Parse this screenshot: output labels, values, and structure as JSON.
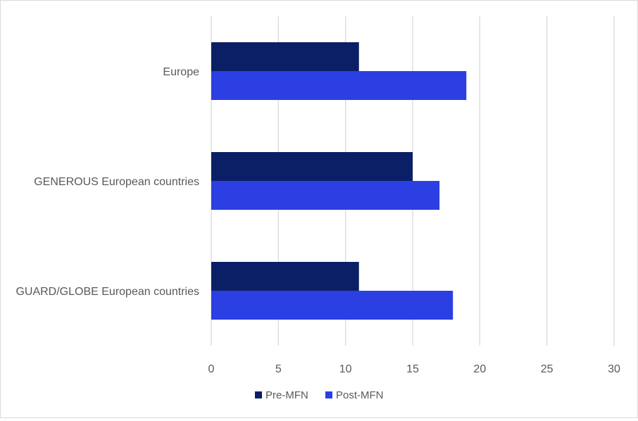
{
  "chart_data": {
    "type": "bar",
    "orientation": "horizontal",
    "title": "",
    "xlabel": "",
    "ylabel": "",
    "categories": [
      "Europe",
      "GENEROUS European countries",
      "GUARD/GLOBE European countries"
    ],
    "series": [
      {
        "name": "Pre-MFN",
        "color": "#0b1f66",
        "values": [
          11,
          15,
          11
        ]
      },
      {
        "name": "Post-MFN",
        "color": "#2b3fe3",
        "values": [
          19,
          17,
          18
        ]
      }
    ],
    "xlim": [
      0,
      30
    ],
    "xticks": [
      "0",
      "5",
      "10",
      "15",
      "20",
      "25",
      "30"
    ],
    "grid": "vertical",
    "gridline_color": "#d9d9d9",
    "legend_position": "bottom"
  }
}
